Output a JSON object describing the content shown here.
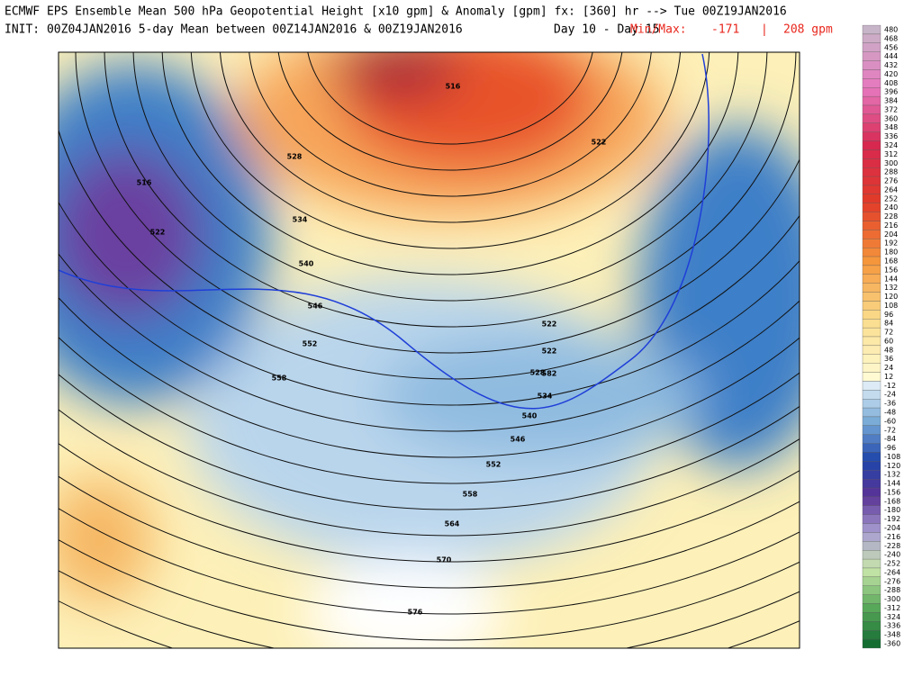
{
  "header": {
    "line1": "ECMWF EPS Ensemble Mean 500 hPa Geopotential Height [x10 gpm] & Anomaly [gpm] fx: [360] hr --> Tue 00Z19JAN2016",
    "line2": "INIT: 00Z04JAN2016 5-day Mean between 00Z14JAN2016 & 00Z19JAN2016",
    "period": "Day 10 - Day 15",
    "minmax_label": "Min/Max:",
    "min": "-171",
    "separator": "|",
    "max": "208 gpm"
  },
  "colorbar": {
    "levels": [
      480,
      468,
      456,
      444,
      432,
      420,
      408,
      396,
      384,
      372,
      360,
      348,
      336,
      324,
      312,
      300,
      288,
      276,
      264,
      252,
      240,
      228,
      216,
      204,
      192,
      180,
      168,
      156,
      144,
      132,
      120,
      108,
      96,
      84,
      72,
      60,
      48,
      36,
      24,
      12,
      -12,
      -24,
      -36,
      -48,
      -60,
      -72,
      -84,
      -96,
      -108,
      -120,
      -132,
      -144,
      -156,
      -168,
      -180,
      -192,
      -204,
      -216,
      -228,
      -240,
      -252,
      -264,
      -276,
      -288,
      -300,
      -312,
      -324,
      -336,
      -348,
      -360
    ]
  },
  "contour_labels": [
    516,
    522,
    522,
    528,
    534,
    540,
    546,
    552,
    558,
    516,
    522,
    522,
    528,
    534,
    540,
    546,
    552,
    558,
    564,
    570,
    576,
    582
  ]
}
